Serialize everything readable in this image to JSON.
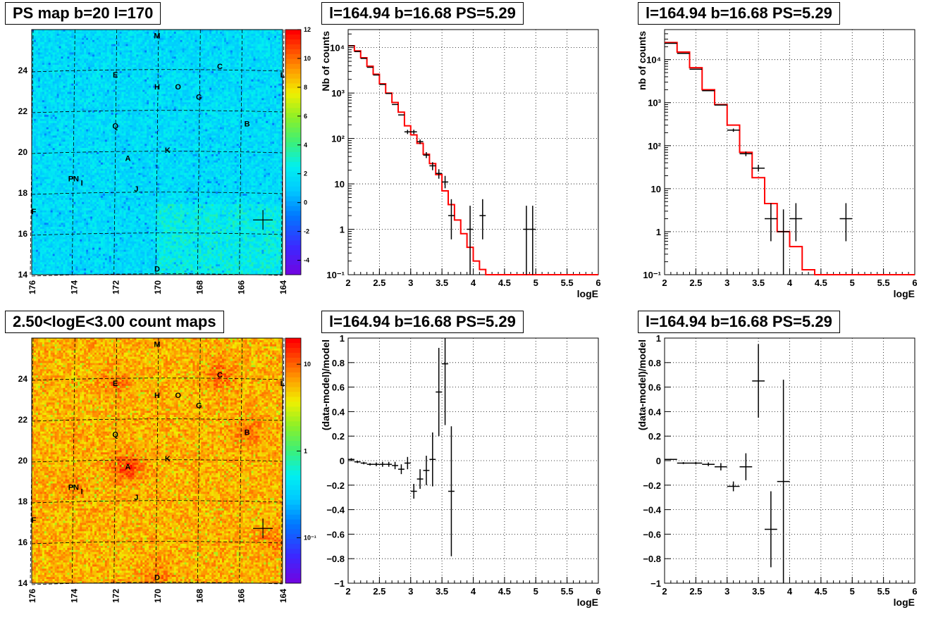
{
  "colors": {
    "model_line": "#ff0000",
    "data_marker": "#000000",
    "grid": "#000000",
    "frame": "#000000"
  },
  "chart_data": [
    {
      "type": "heatmap",
      "title": "PS map b=20 l=170",
      "xlim": [
        176,
        164
      ],
      "ylim": [
        14,
        26
      ],
      "x_ticks": [
        176,
        174,
        172,
        170,
        168,
        166,
        164
      ],
      "y_ticks": [
        14,
        16,
        18,
        20,
        22,
        24
      ],
      "colorbar": {
        "scale": "linear",
        "range": [
          -5,
          12
        ],
        "ticks": [
          -4,
          -2,
          0,
          2,
          4,
          6,
          8,
          10,
          12
        ]
      },
      "source_labels": [
        {
          "text": "M",
          "l": 170.0,
          "b": 25.7
        },
        {
          "text": "C",
          "l": 167.0,
          "b": 24.2
        },
        {
          "text": "L",
          "l": 164.0,
          "b": 23.8
        },
        {
          "text": "E",
          "l": 172.0,
          "b": 23.8
        },
        {
          "text": "H",
          "l": 170.0,
          "b": 23.2
        },
        {
          "text": "O",
          "l": 169.0,
          "b": 23.2
        },
        {
          "text": "G",
          "l": 168.0,
          "b": 22.7
        },
        {
          "text": "B",
          "l": 165.7,
          "b": 21.4
        },
        {
          "text": "Q",
          "l": 172.0,
          "b": 21.3
        },
        {
          "text": "K",
          "l": 169.5,
          "b": 20.1
        },
        {
          "text": "A",
          "l": 171.4,
          "b": 19.7
        },
        {
          "text": "PN",
          "l": 174.0,
          "b": 18.7
        },
        {
          "text": "I",
          "l": 173.6,
          "b": 18.5
        },
        {
          "text": "J",
          "l": 171.0,
          "b": 18.2
        },
        {
          "text": "F",
          "l": 175.9,
          "b": 17.1
        },
        {
          "text": "D",
          "l": 170.0,
          "b": 14.3
        }
      ],
      "marker": {
        "l": 164.94,
        "b": 16.68
      }
    },
    {
      "type": "line",
      "title": "l=164.94 b=16.68 PS=5.29",
      "xlabel": "logE",
      "ylabel": "Nb of counts",
      "yscale": "log",
      "xlim": [
        2,
        6
      ],
      "ylim": [
        0.1,
        25000
      ],
      "x_ticks": [
        "2",
        "2.5",
        "3",
        "3.5",
        "4",
        "4.5",
        "5",
        "5.5",
        "6"
      ],
      "y_ticks": [
        "10⁻¹",
        "1",
        "10",
        "10²",
        "10³",
        "10⁴"
      ],
      "model_steps": {
        "edges": [
          2.0,
          2.1,
          2.2,
          2.3,
          2.4,
          2.5,
          2.6,
          2.7,
          2.8,
          2.9,
          3.0,
          3.1,
          3.2,
          3.3,
          3.4,
          3.5,
          3.6,
          3.7,
          3.8,
          3.9,
          4.0,
          4.1,
          4.2,
          6.0
        ],
        "values": [
          11000,
          8500,
          6000,
          3900,
          2600,
          1600,
          1000,
          620,
          380,
          190,
          120,
          78,
          45,
          28,
          16,
          7,
          3.5,
          1.6,
          0.8,
          0.4,
          0.2,
          0.13,
          0.1
        ]
      },
      "data_points": [
        {
          "x": 2.05,
          "y": 11000,
          "dx": 0.05,
          "dy": [
            11000,
            11000
          ]
        },
        {
          "x": 2.15,
          "y": 8200,
          "dx": 0.05,
          "dy": [
            8200,
            8200
          ]
        },
        {
          "x": 2.25,
          "y": 5800,
          "dx": 0.05,
          "dy": [
            5800,
            5800
          ]
        },
        {
          "x": 2.35,
          "y": 3700,
          "dx": 0.05,
          "dy": [
            3700,
            3700
          ]
        },
        {
          "x": 2.45,
          "y": 2500,
          "dx": 0.05,
          "dy": [
            2500,
            2500
          ]
        },
        {
          "x": 2.55,
          "y": 1550,
          "dx": 0.05,
          "dy": [
            1550,
            1550
          ]
        },
        {
          "x": 2.65,
          "y": 980,
          "dx": 0.05,
          "dy": [
            980,
            980
          ]
        },
        {
          "x": 2.75,
          "y": 560,
          "dx": 0.05,
          "dy": [
            560,
            560
          ]
        },
        {
          "x": 2.85,
          "y": 330,
          "dx": 0.05,
          "dy": [
            330,
            330
          ]
        },
        {
          "x": 2.95,
          "y": 140,
          "dx": 0.05,
          "dy": [
            125,
            155
          ]
        },
        {
          "x": 3.05,
          "y": 140,
          "dx": 0.05,
          "dy": [
            125,
            155
          ]
        },
        {
          "x": 3.15,
          "y": 85,
          "dx": 0.05,
          "dy": [
            75,
            95
          ]
        },
        {
          "x": 3.25,
          "y": 43,
          "dx": 0.05,
          "dy": [
            37,
            50
          ]
        },
        {
          "x": 3.35,
          "y": 25,
          "dx": 0.05,
          "dy": [
            20,
            30
          ]
        },
        {
          "x": 3.45,
          "y": 17,
          "dx": 0.05,
          "dy": [
            13,
            21
          ]
        },
        {
          "x": 3.55,
          "y": 11,
          "dx": 0.05,
          "dy": [
            8,
            15
          ]
        },
        {
          "x": 3.65,
          "y": 2,
          "dx": 0.05,
          "dy": [
            0.6,
            4.6
          ]
        },
        {
          "x": 3.95,
          "y": 1,
          "dx": 0.05,
          "dy": [
            0.1,
            3.3
          ]
        },
        {
          "x": 4.15,
          "y": 2,
          "dx": 0.05,
          "dy": [
            0.6,
            4.6
          ]
        },
        {
          "x": 4.85,
          "y": 1,
          "dx": 0.05,
          "dy": [
            0.1,
            3.3
          ]
        },
        {
          "x": 4.95,
          "y": 1,
          "dx": 0.05,
          "dy": [
            0.1,
            3.3
          ]
        }
      ]
    },
    {
      "type": "line",
      "title": "l=164.94 b=16.68 PS=5.29",
      "xlabel": "logE",
      "ylabel": "nb of counts",
      "yscale": "log",
      "xlim": [
        2,
        6
      ],
      "ylim": [
        0.1,
        50000
      ],
      "x_ticks": [
        "2",
        "2.5",
        "3",
        "3.5",
        "4",
        "4.5",
        "5",
        "5.5",
        "6"
      ],
      "y_ticks": [
        "10⁻¹",
        "1",
        "10",
        "10²",
        "10³",
        "10⁴"
      ],
      "model_steps": {
        "edges": [
          2.0,
          2.2,
          2.4,
          2.6,
          2.8,
          3.0,
          3.2,
          3.4,
          3.6,
          3.8,
          4.0,
          4.2,
          4.4,
          6.0
        ],
        "values": [
          25000,
          15000,
          6500,
          2000,
          900,
          300,
          70,
          18,
          4.5,
          1.0,
          0.45,
          0.13,
          0.1
        ]
      },
      "data_points": [
        {
          "x": 2.1,
          "y": 24000,
          "dx": 0.1,
          "dy": [
            24000,
            24000
          ]
        },
        {
          "x": 2.3,
          "y": 14000,
          "dx": 0.1,
          "dy": [
            14000,
            14000
          ]
        },
        {
          "x": 2.5,
          "y": 6000,
          "dx": 0.1,
          "dy": [
            6000,
            6000
          ]
        },
        {
          "x": 2.7,
          "y": 1900,
          "dx": 0.1,
          "dy": [
            1900,
            1900
          ]
        },
        {
          "x": 2.9,
          "y": 880,
          "dx": 0.1,
          "dy": [
            880,
            880
          ]
        },
        {
          "x": 3.1,
          "y": 230,
          "dx": 0.1,
          "dy": [
            210,
            250
          ]
        },
        {
          "x": 3.3,
          "y": 65,
          "dx": 0.1,
          "dy": [
            57,
            73
          ]
        },
        {
          "x": 3.5,
          "y": 30,
          "dx": 0.1,
          "dy": [
            25,
            36
          ]
        },
        {
          "x": 3.7,
          "y": 2,
          "dx": 0.1,
          "dy": [
            0.6,
            4.6
          ]
        },
        {
          "x": 3.9,
          "y": 1,
          "dx": 0.1,
          "dy": [
            0.1,
            3.3
          ]
        },
        {
          "x": 4.1,
          "y": 2,
          "dx": 0.1,
          "dy": [
            0.6,
            4.6
          ]
        },
        {
          "x": 4.9,
          "y": 2,
          "dx": 0.1,
          "dy": [
            0.6,
            4.6
          ]
        }
      ]
    },
    {
      "type": "heatmap",
      "title": "2.50<logE<3.00 count maps",
      "xlim": [
        176,
        164
      ],
      "ylim": [
        14,
        26
      ],
      "x_ticks": [
        176,
        174,
        172,
        170,
        168,
        166,
        164
      ],
      "y_ticks": [
        14,
        16,
        18,
        20,
        22,
        24
      ],
      "colorbar": {
        "scale": "log",
        "range": [
          0.03,
          20
        ],
        "ticks": [
          "10",
          "1",
          "10⁻¹"
        ]
      },
      "source_labels": [
        {
          "text": "M",
          "l": 170.0,
          "b": 25.7
        },
        {
          "text": "C",
          "l": 167.0,
          "b": 24.2
        },
        {
          "text": "L",
          "l": 164.0,
          "b": 23.8
        },
        {
          "text": "E",
          "l": 172.0,
          "b": 23.8
        },
        {
          "text": "H",
          "l": 170.0,
          "b": 23.2
        },
        {
          "text": "O",
          "l": 169.0,
          "b": 23.2
        },
        {
          "text": "G",
          "l": 168.0,
          "b": 22.7
        },
        {
          "text": "B",
          "l": 165.7,
          "b": 21.4
        },
        {
          "text": "Q",
          "l": 172.0,
          "b": 21.3
        },
        {
          "text": "K",
          "l": 169.5,
          "b": 20.1
        },
        {
          "text": "A",
          "l": 171.4,
          "b": 19.7
        },
        {
          "text": "PN",
          "l": 174.0,
          "b": 18.7
        },
        {
          "text": "I",
          "l": 173.6,
          "b": 18.5
        },
        {
          "text": "J",
          "l": 171.0,
          "b": 18.2
        },
        {
          "text": "F",
          "l": 175.9,
          "b": 17.1
        },
        {
          "text": "D",
          "l": 170.0,
          "b": 14.3
        }
      ],
      "marker": {
        "l": 164.94,
        "b": 16.68
      }
    },
    {
      "type": "scatter",
      "title": "l=164.94 b=16.68 PS=5.29",
      "xlabel": "logE",
      "ylabel": "(data-model)/model",
      "xlim": [
        2,
        6
      ],
      "ylim": [
        -1,
        1
      ],
      "x_ticks": [
        "2",
        "2.5",
        "3",
        "3.5",
        "4",
        "4.5",
        "5",
        "5.5",
        "6"
      ],
      "y_ticks": [
        "−1",
        "−0.8",
        "−0.6",
        "−0.4",
        "−0.2",
        "0",
        "0.2",
        "0.4",
        "0.6",
        "0.8",
        "1"
      ],
      "data_points": [
        {
          "x": 2.05,
          "y": 0.01,
          "dx": 0.05,
          "err": 0.01
        },
        {
          "x": 2.15,
          "y": -0.01,
          "dx": 0.05,
          "err": 0.01
        },
        {
          "x": 2.25,
          "y": -0.02,
          "dx": 0.05,
          "err": 0.01
        },
        {
          "x": 2.35,
          "y": -0.03,
          "dx": 0.05,
          "err": 0.01
        },
        {
          "x": 2.45,
          "y": -0.03,
          "dx": 0.05,
          "err": 0.015
        },
        {
          "x": 2.55,
          "y": -0.03,
          "dx": 0.05,
          "err": 0.02
        },
        {
          "x": 2.65,
          "y": -0.03,
          "dx": 0.05,
          "err": 0.02
        },
        {
          "x": 2.75,
          "y": -0.04,
          "dx": 0.05,
          "err": 0.03
        },
        {
          "x": 2.85,
          "y": -0.07,
          "dx": 0.05,
          "err": 0.04
        },
        {
          "x": 2.95,
          "y": -0.02,
          "dx": 0.05,
          "err": 0.05
        },
        {
          "x": 3.05,
          "y": -0.25,
          "dx": 0.05,
          "err": 0.06
        },
        {
          "x": 3.15,
          "y": -0.15,
          "dx": 0.05,
          "err": 0.08
        },
        {
          "x": 3.25,
          "y": -0.08,
          "dx": 0.05,
          "err": 0.12
        },
        {
          "x": 3.35,
          "y": 0.01,
          "dx": 0.05,
          "err": 0.22
        },
        {
          "x": 3.45,
          "y": 0.56,
          "dx": 0.05,
          "err": 0.36
        },
        {
          "x": 3.55,
          "y": 0.79,
          "dx": 0.05,
          "err": 0.5
        },
        {
          "x": 3.65,
          "y": -0.25,
          "dx": 0.05,
          "err": 0.53
        }
      ]
    },
    {
      "type": "scatter",
      "title": "l=164.94 b=16.68 PS=5.29",
      "xlabel": "logE",
      "ylabel": "(data-model)/model",
      "xlim": [
        2,
        6
      ],
      "ylim": [
        -1,
        1
      ],
      "x_ticks": [
        "2",
        "2.5",
        "3",
        "3.5",
        "4",
        "4.5",
        "5",
        "5.5",
        "6"
      ],
      "y_ticks": [
        "−1",
        "−0.8",
        "−0.6",
        "−0.4",
        "−0.2",
        "0",
        "0.2",
        "0.4",
        "0.6",
        "0.8",
        "1"
      ],
      "data_points": [
        {
          "x": 2.1,
          "y": 0.01,
          "dx": 0.1,
          "err": 0.005
        },
        {
          "x": 2.3,
          "y": -0.02,
          "dx": 0.1,
          "err": 0.008
        },
        {
          "x": 2.5,
          "y": -0.02,
          "dx": 0.1,
          "err": 0.01
        },
        {
          "x": 2.7,
          "y": -0.03,
          "dx": 0.1,
          "err": 0.015
        },
        {
          "x": 2.9,
          "y": -0.05,
          "dx": 0.1,
          "err": 0.03
        },
        {
          "x": 3.1,
          "y": -0.21,
          "dx": 0.1,
          "err": 0.04
        },
        {
          "x": 3.3,
          "y": -0.05,
          "dx": 0.1,
          "err": 0.11
        },
        {
          "x": 3.5,
          "y": 0.65,
          "dx": 0.1,
          "err": 0.3
        },
        {
          "x": 3.7,
          "y": -0.56,
          "dx": 0.1,
          "err": 0.31
        },
        {
          "x": 3.9,
          "y": -0.17,
          "dx": 0.1,
          "err": 0.83
        }
      ]
    }
  ]
}
